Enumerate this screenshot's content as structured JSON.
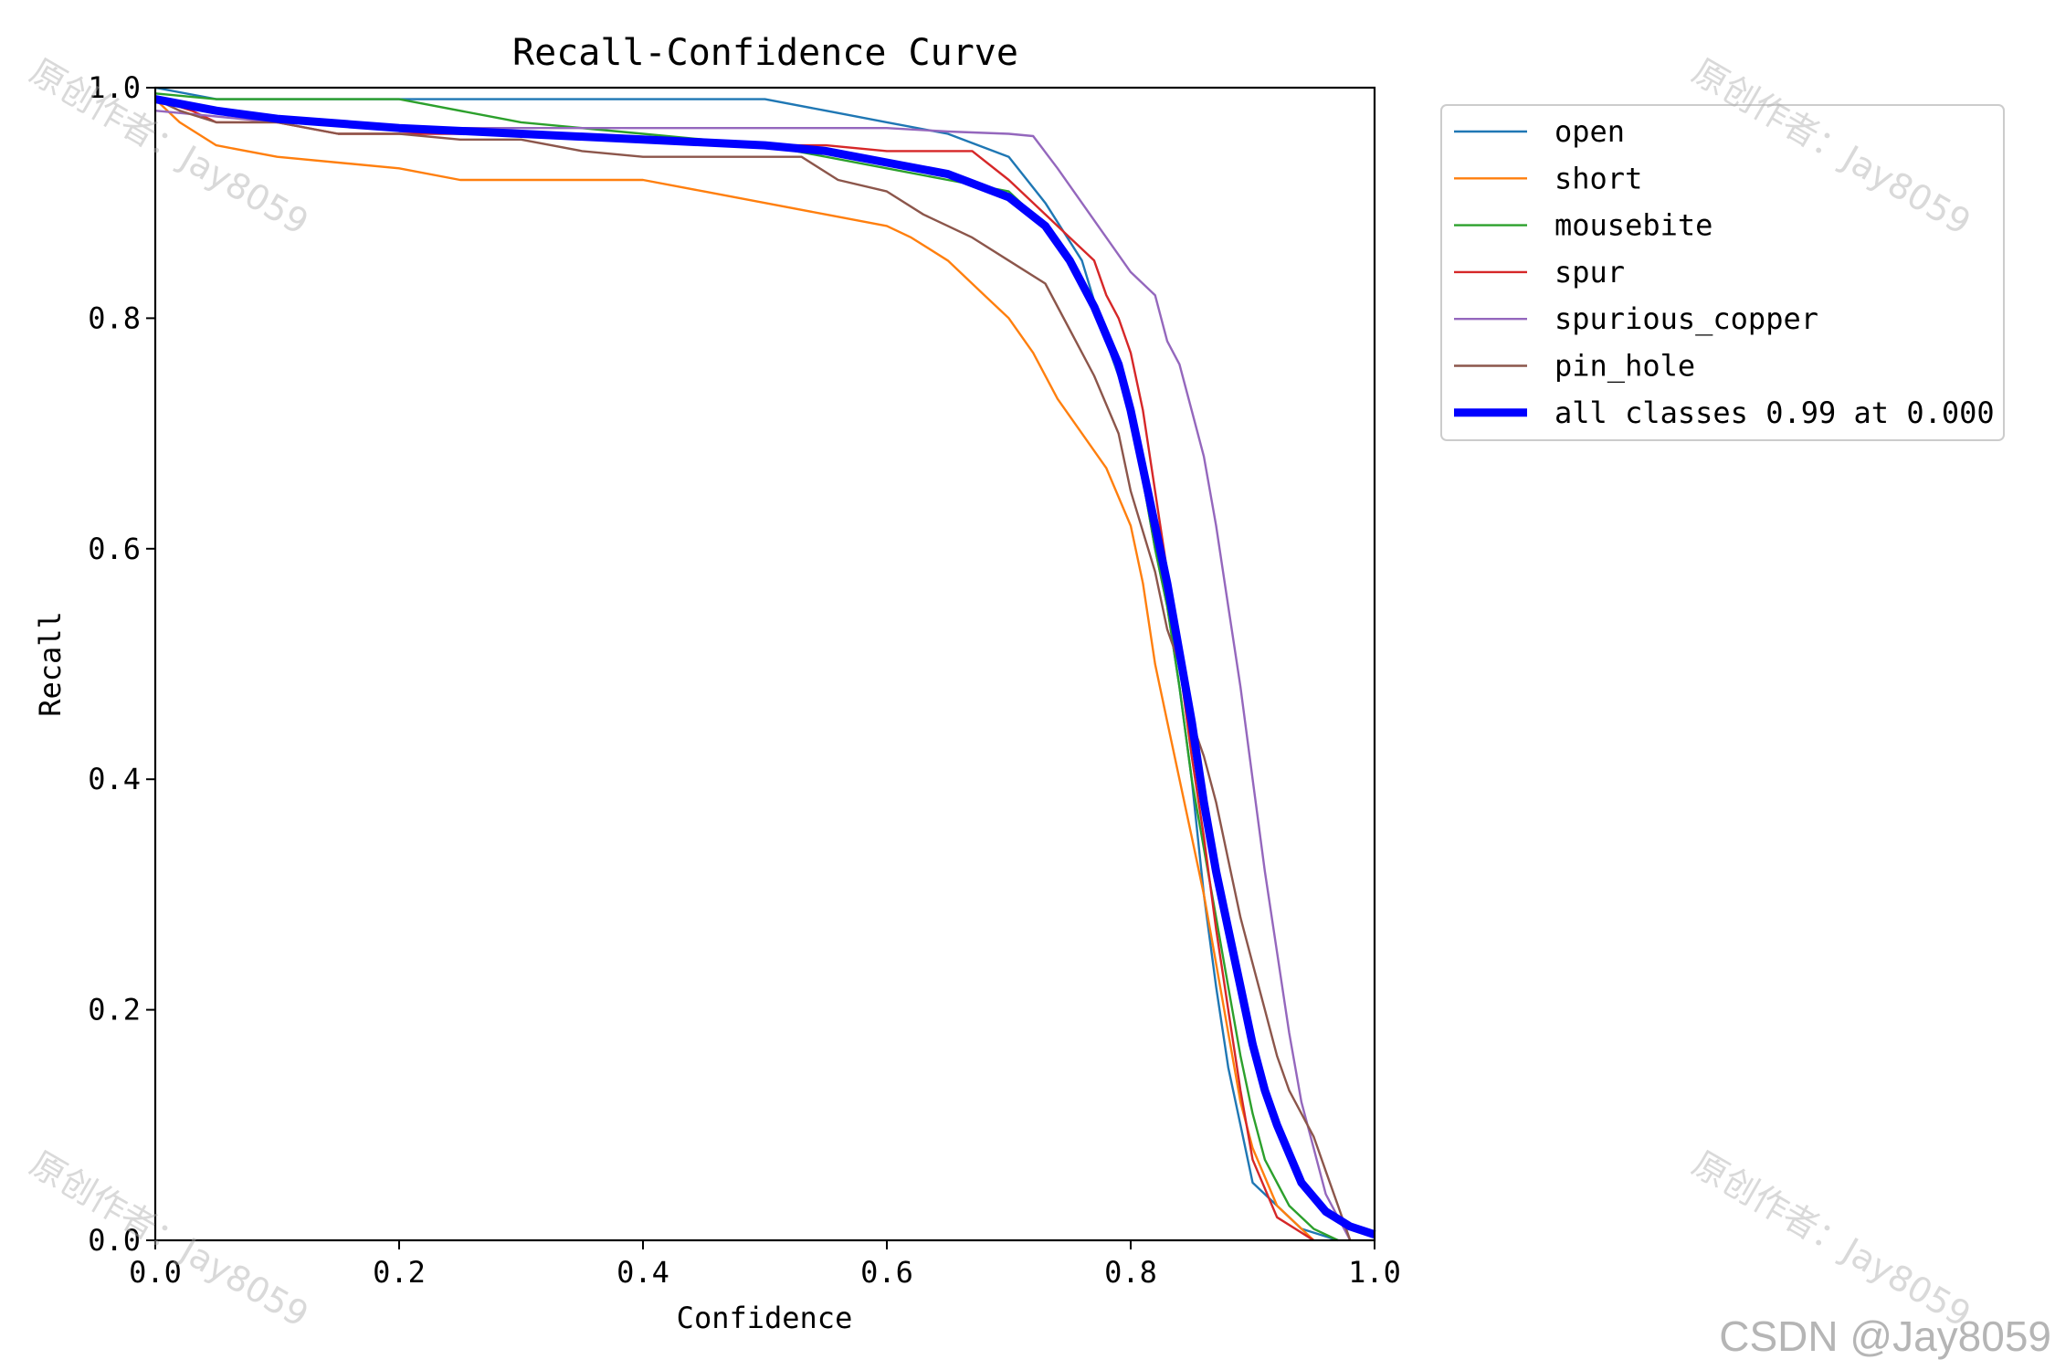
{
  "chart_data": {
    "type": "line",
    "title": "Recall-Confidence Curve",
    "xlabel": "Confidence",
    "ylabel": "Recall",
    "xlim": [
      0,
      1
    ],
    "ylim": [
      0,
      1
    ],
    "xticks": [
      "0.0",
      "0.2",
      "0.4",
      "0.6",
      "0.8",
      "1.0"
    ],
    "yticks": [
      "0.0",
      "0.2",
      "0.4",
      "0.6",
      "0.8",
      "1.0"
    ],
    "grid": false,
    "legend_position": "outside-top-right",
    "series": [
      {
        "name": "open",
        "color": "#1f77b4",
        "line_width": "thin",
        "x": [
          0.0,
          0.05,
          0.1,
          0.2,
          0.3,
          0.4,
          0.5,
          0.55,
          0.6,
          0.65,
          0.7,
          0.73,
          0.76,
          0.78,
          0.8,
          0.82,
          0.83,
          0.84,
          0.85,
          0.86,
          0.87,
          0.88,
          0.89,
          0.9,
          0.92,
          0.94,
          0.97
        ],
        "y": [
          1.0,
          0.99,
          0.99,
          0.99,
          0.99,
          0.99,
          0.99,
          0.98,
          0.97,
          0.96,
          0.94,
          0.9,
          0.85,
          0.78,
          0.72,
          0.6,
          0.55,
          0.48,
          0.4,
          0.3,
          0.22,
          0.15,
          0.1,
          0.05,
          0.03,
          0.01,
          0.0
        ]
      },
      {
        "name": "short",
        "color": "#ff7f0e",
        "line_width": "thin",
        "x": [
          0.0,
          0.02,
          0.05,
          0.1,
          0.2,
          0.25,
          0.3,
          0.4,
          0.45,
          0.5,
          0.55,
          0.6,
          0.62,
          0.65,
          0.68,
          0.7,
          0.72,
          0.74,
          0.76,
          0.78,
          0.8,
          0.81,
          0.82,
          0.83,
          0.84,
          0.85,
          0.86,
          0.87,
          0.88,
          0.89,
          0.9,
          0.92,
          0.95
        ],
        "y": [
          0.99,
          0.97,
          0.95,
          0.94,
          0.93,
          0.92,
          0.92,
          0.92,
          0.91,
          0.9,
          0.89,
          0.88,
          0.87,
          0.85,
          0.82,
          0.8,
          0.77,
          0.73,
          0.7,
          0.67,
          0.62,
          0.57,
          0.5,
          0.45,
          0.4,
          0.35,
          0.3,
          0.24,
          0.18,
          0.12,
          0.08,
          0.03,
          0.0
        ]
      },
      {
        "name": "mousebite",
        "color": "#2ca02c",
        "line_width": "thin",
        "x": [
          0.0,
          0.05,
          0.1,
          0.2,
          0.3,
          0.4,
          0.5,
          0.6,
          0.65,
          0.7,
          0.73,
          0.75,
          0.77,
          0.79,
          0.8,
          0.81,
          0.82,
          0.83,
          0.84,
          0.85,
          0.86,
          0.87,
          0.88,
          0.89,
          0.9,
          0.91,
          0.93,
          0.95,
          0.97
        ],
        "y": [
          0.995,
          0.99,
          0.99,
          0.99,
          0.97,
          0.96,
          0.95,
          0.93,
          0.92,
          0.91,
          0.88,
          0.85,
          0.81,
          0.76,
          0.72,
          0.66,
          0.6,
          0.55,
          0.48,
          0.4,
          0.34,
          0.28,
          0.22,
          0.16,
          0.11,
          0.07,
          0.03,
          0.01,
          0.0
        ]
      },
      {
        "name": "spur",
        "color": "#d62728",
        "line_width": "thin",
        "x": [
          0.0,
          0.03,
          0.05,
          0.1,
          0.15,
          0.2,
          0.3,
          0.4,
          0.5,
          0.55,
          0.6,
          0.67,
          0.7,
          0.73,
          0.75,
          0.77,
          0.78,
          0.79,
          0.8,
          0.81,
          0.82,
          0.83,
          0.84,
          0.85,
          0.86,
          0.87,
          0.88,
          0.89,
          0.9,
          0.92,
          0.95
        ],
        "y": [
          0.99,
          0.98,
          0.97,
          0.97,
          0.96,
          0.96,
          0.96,
          0.955,
          0.95,
          0.95,
          0.945,
          0.945,
          0.92,
          0.89,
          0.87,
          0.85,
          0.82,
          0.8,
          0.77,
          0.72,
          0.65,
          0.58,
          0.5,
          0.42,
          0.35,
          0.27,
          0.2,
          0.13,
          0.07,
          0.02,
          0.0
        ]
      },
      {
        "name": "spurious_copper",
        "color": "#9467bd",
        "line_width": "thin",
        "x": [
          0.0,
          0.05,
          0.1,
          0.2,
          0.3,
          0.4,
          0.5,
          0.6,
          0.65,
          0.7,
          0.72,
          0.74,
          0.76,
          0.78,
          0.8,
          0.82,
          0.83,
          0.84,
          0.85,
          0.86,
          0.87,
          0.88,
          0.89,
          0.9,
          0.91,
          0.92,
          0.93,
          0.94,
          0.95,
          0.96,
          0.97,
          0.98
        ],
        "y": [
          0.98,
          0.975,
          0.97,
          0.965,
          0.965,
          0.965,
          0.965,
          0.965,
          0.962,
          0.96,
          0.958,
          0.93,
          0.9,
          0.87,
          0.84,
          0.82,
          0.78,
          0.76,
          0.72,
          0.68,
          0.62,
          0.55,
          0.48,
          0.4,
          0.32,
          0.25,
          0.18,
          0.12,
          0.08,
          0.04,
          0.02,
          0.0
        ]
      },
      {
        "name": "pin_hole",
        "color": "#8c564b",
        "line_width": "thin",
        "x": [
          0.0,
          0.02,
          0.05,
          0.1,
          0.15,
          0.2,
          0.25,
          0.3,
          0.35,
          0.4,
          0.45,
          0.5,
          0.53,
          0.56,
          0.6,
          0.63,
          0.65,
          0.67,
          0.7,
          0.73,
          0.75,
          0.77,
          0.79,
          0.8,
          0.82,
          0.83,
          0.84,
          0.85,
          0.86,
          0.87,
          0.88,
          0.89,
          0.9,
          0.91,
          0.92,
          0.93,
          0.94,
          0.95,
          0.96,
          0.97,
          0.98
        ],
        "y": [
          0.99,
          0.98,
          0.97,
          0.97,
          0.96,
          0.96,
          0.955,
          0.955,
          0.945,
          0.94,
          0.94,
          0.94,
          0.94,
          0.92,
          0.91,
          0.89,
          0.88,
          0.87,
          0.85,
          0.83,
          0.79,
          0.75,
          0.7,
          0.65,
          0.58,
          0.53,
          0.5,
          0.45,
          0.42,
          0.38,
          0.33,
          0.28,
          0.24,
          0.2,
          0.16,
          0.13,
          0.11,
          0.09,
          0.06,
          0.03,
          0.0
        ]
      },
      {
        "name": "all classes 0.99 at 0.000",
        "color": "#0000ff",
        "line_width": "thick",
        "x": [
          0.0,
          0.05,
          0.1,
          0.2,
          0.3,
          0.4,
          0.5,
          0.55,
          0.6,
          0.65,
          0.7,
          0.73,
          0.75,
          0.77,
          0.79,
          0.8,
          0.81,
          0.82,
          0.83,
          0.84,
          0.85,
          0.86,
          0.87,
          0.88,
          0.89,
          0.9,
          0.91,
          0.92,
          0.94,
          0.96,
          0.98,
          1.0
        ],
        "y": [
          0.99,
          0.98,
          0.973,
          0.965,
          0.96,
          0.955,
          0.95,
          0.945,
          0.935,
          0.925,
          0.905,
          0.88,
          0.85,
          0.81,
          0.76,
          0.72,
          0.67,
          0.62,
          0.57,
          0.51,
          0.45,
          0.38,
          0.32,
          0.27,
          0.22,
          0.17,
          0.13,
          0.1,
          0.05,
          0.025,
          0.012,
          0.005
        ]
      }
    ]
  },
  "watermarks": {
    "text": "原创作者：Jay8059",
    "credit": "CSDN @Jay8059"
  }
}
